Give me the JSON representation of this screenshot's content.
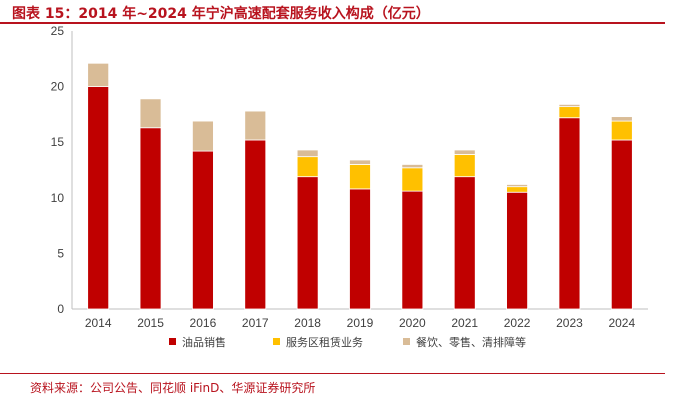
{
  "title": "图表 15：2014 年~2024 年宁沪高速配套服务收入构成（亿元）",
  "source": "资料来源：公司公告、同花顺 iFinD、华源证券研究所",
  "chart_data": {
    "type": "bar",
    "stacked": true,
    "title": "图表 15：2014 年~2024 年宁沪高速配套服务收入构成（亿元）",
    "xlabel": "",
    "ylabel": "",
    "categories": [
      "2014",
      "2015",
      "2016",
      "2017",
      "2018",
      "2019",
      "2020",
      "2021",
      "2022",
      "2023",
      "2024"
    ],
    "ylim": [
      0,
      25
    ],
    "yticks": [
      "0",
      "5",
      "10",
      "15",
      "20",
      "25"
    ],
    "grid": false,
    "legend_position": "bottom",
    "series": [
      {
        "name": "油品销售",
        "color": "#c00000",
        "values": [
          20.0,
          16.3,
          14.2,
          15.2,
          11.9,
          10.8,
          10.6,
          11.9,
          10.5,
          17.2,
          15.2
        ]
      },
      {
        "name": "服务区租赁业务",
        "color": "#ffc000",
        "values": [
          0,
          0,
          0,
          0,
          1.8,
          2.2,
          2.1,
          2.0,
          0.5,
          1.0,
          1.7
        ]
      },
      {
        "name": "餐饮、零售、清排障等",
        "color": "#d9bc97",
        "values": [
          2.1,
          2.6,
          2.7,
          2.6,
          0.6,
          0.4,
          0.3,
          0.4,
          0.2,
          0.2,
          0.4
        ]
      }
    ]
  }
}
